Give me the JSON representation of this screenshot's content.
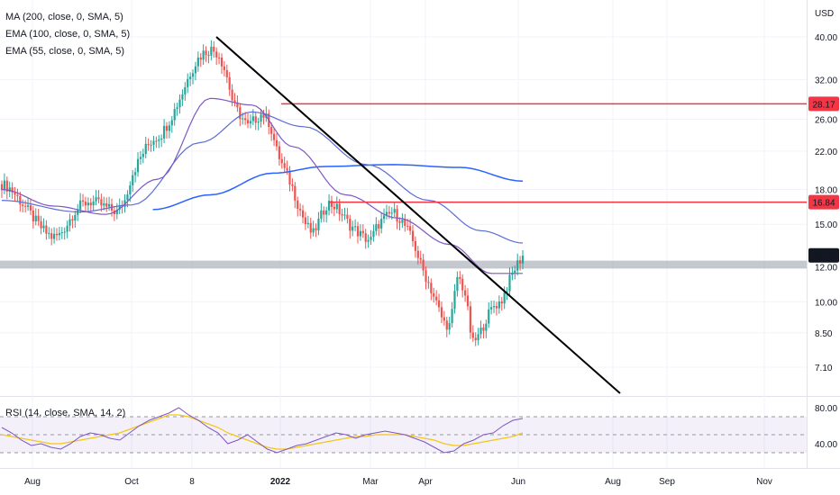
{
  "currency": "USD",
  "price_indicators": [
    {
      "label": "MA (200, close, 0, SMA, 5)",
      "color": "#2962FF"
    },
    {
      "label": "EMA (100, close, 0, SMA, 5)",
      "color": "#5B6DD6"
    },
    {
      "label": "EMA (55, close, 0, SMA, 5)",
      "color": "#7E57C2"
    }
  ],
  "rsi_label": "RSI (14, close, SMA, 14, 2)",
  "colors": {
    "up": "#26a69a",
    "down": "#ef5350",
    "level": "#f23645",
    "ma200": "#2962FF",
    "ema100": "#5B6DD6",
    "ema55": "#7E57C2",
    "rsi": "#7E57C2",
    "rsi_ma": "#F5C518",
    "support": "#b2b5be",
    "trend": "#000000"
  },
  "chart_data": {
    "type": "candlestick",
    "scale": "log",
    "y_ticks": [
      "40.00",
      "32.00",
      "26.00",
      "22.00",
      "18.00",
      "15.00",
      "12.00",
      "10.00",
      "8.50",
      "7.10"
    ],
    "x_ticks": [
      "Aug",
      "Oct",
      "8",
      "2022",
      "Mar",
      "Apr",
      "Jun",
      "Aug",
      "Sep",
      "Nov"
    ],
    "last_price": "12.75",
    "resistance_levels": [
      {
        "value": 28.17,
        "label": "28.17"
      },
      {
        "value": 16.84,
        "label": "16.84"
      }
    ],
    "support_zone": [
      11.9,
      12.4
    ],
    "trendline": {
      "start_price": 40.0,
      "end_price": 6.5,
      "start_date": "late Nov 2021",
      "end_date": "mid Aug 2022"
    },
    "price_path": [
      18.5,
      18.2,
      17.4,
      16.6,
      15.8,
      15.0,
      14.4,
      14.0,
      14.2,
      15.0,
      16.0,
      16.6,
      16.9,
      16.8,
      16.5,
      16.2,
      16.0,
      17.0,
      19.5,
      21.0,
      22.5,
      23.5,
      24.0,
      25.5,
      27.5,
      30.0,
      33.0,
      35.5,
      37.0,
      37.5,
      36.5,
      33.0,
      28.0,
      26.5,
      25.0,
      26.0,
      26.8,
      25.5,
      22.0,
      20.0,
      18.5,
      16.5,
      15.0,
      14.2,
      15.5,
      16.8,
      16.5,
      15.8,
      15.0,
      14.5,
      14.0,
      13.8,
      15.0,
      15.5,
      16.0,
      15.5,
      14.6,
      13.5,
      12.0,
      11.0,
      10.0,
      9.0,
      8.8,
      11.5,
      10.5,
      8.0,
      8.4,
      9.2,
      9.8,
      10.0,
      11.0,
      12.0,
      12.75
    ],
    "ma200_path": [
      {
        "t": 0.29,
        "v": 16.2
      },
      {
        "t": 0.4,
        "v": 17.5
      },
      {
        "t": 0.52,
        "v": 19.6
      },
      {
        "t": 0.62,
        "v": 20.3
      },
      {
        "t": 0.75,
        "v": 20.5
      },
      {
        "t": 0.88,
        "v": 20.2
      },
      {
        "t": 1.0,
        "v": 18.8
      }
    ],
    "ema100_path": [
      {
        "t": 0.0,
        "v": 17.0
      },
      {
        "t": 0.15,
        "v": 16.0
      },
      {
        "t": 0.25,
        "v": 16.6
      },
      {
        "t": 0.38,
        "v": 23.0
      },
      {
        "t": 0.48,
        "v": 27.0
      },
      {
        "t": 0.58,
        "v": 25.0
      },
      {
        "t": 0.7,
        "v": 20.5
      },
      {
        "t": 0.82,
        "v": 17.0
      },
      {
        "t": 0.92,
        "v": 14.5
      },
      {
        "t": 1.0,
        "v": 13.6
      }
    ],
    "ema55_path": [
      {
        "t": 0.0,
        "v": 18.0
      },
      {
        "t": 0.1,
        "v": 16.5
      },
      {
        "t": 0.2,
        "v": 15.8
      },
      {
        "t": 0.3,
        "v": 19.0
      },
      {
        "t": 0.4,
        "v": 29.0
      },
      {
        "t": 0.48,
        "v": 28.0
      },
      {
        "t": 0.56,
        "v": 22.5
      },
      {
        "t": 0.66,
        "v": 17.5
      },
      {
        "t": 0.76,
        "v": 15.5
      },
      {
        "t": 0.86,
        "v": 13.5
      },
      {
        "t": 0.94,
        "v": 11.6
      },
      {
        "t": 1.0,
        "v": 11.6
      }
    ],
    "rsi": {
      "levels": [
        70,
        50,
        30
      ],
      "y_ticks": [
        "80.00",
        "40.00"
      ],
      "values": [
        58,
        52,
        44,
        38,
        40,
        36,
        34,
        40,
        48,
        52,
        50,
        46,
        44,
        52,
        60,
        66,
        70,
        74,
        80,
        72,
        66,
        58,
        52,
        40,
        44,
        50,
        42,
        34,
        30,
        34,
        38,
        40,
        44,
        48,
        52,
        50,
        46,
        50,
        52,
        54,
        52,
        50,
        46,
        42,
        36,
        30,
        32,
        40,
        44,
        50,
        52,
        60,
        66,
        68
      ],
      "ma_values": [
        50,
        48,
        46,
        44,
        42,
        40,
        40,
        42,
        44,
        46,
        48,
        50,
        52,
        56,
        60,
        64,
        68,
        72,
        72,
        70,
        66,
        62,
        58,
        52,
        48,
        44,
        40,
        36,
        34,
        34,
        36,
        38,
        40,
        42,
        44,
        46,
        48,
        48,
        50,
        50,
        50,
        50,
        48,
        46,
        44,
        40,
        38,
        38,
        40,
        42,
        44,
        46,
        48,
        52
      ]
    }
  }
}
